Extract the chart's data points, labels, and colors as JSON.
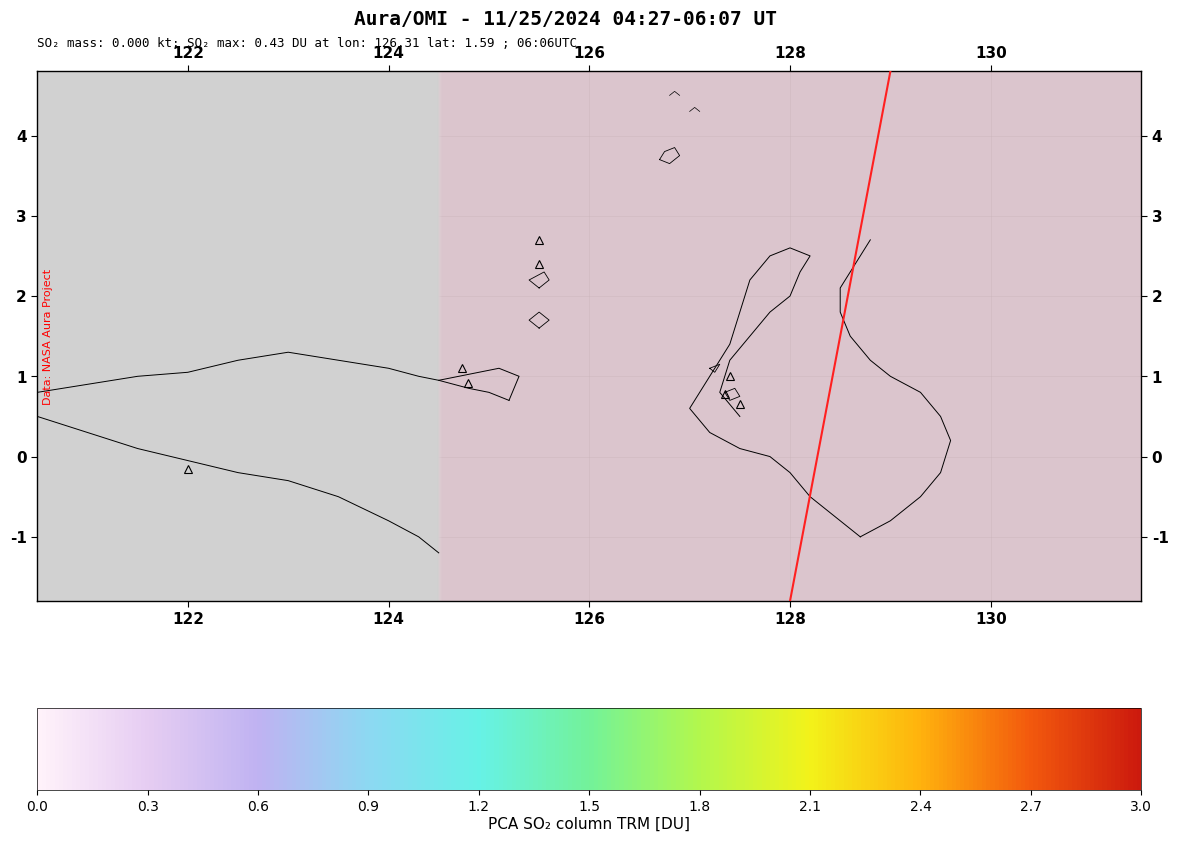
{
  "title": "Aura/OMI - 11/25/2024 04:27-06:07 UT",
  "subtitle": "SO₂ mass: 0.000 kt; SO₂ max: 0.43 DU at lon: 126.31 lat: 1.59 ; 06:06UTC",
  "lon_min": 120.5,
  "lon_max": 131.5,
  "lat_min": -1.8,
  "lat_max": 4.8,
  "lon_ticks": [
    122,
    124,
    126,
    128,
    130
  ],
  "lat_ticks": [
    -1,
    0,
    1,
    2,
    3,
    4
  ],
  "colorbar_label": "PCA SO₂ column TRM [DU]",
  "colorbar_ticks": [
    0.0,
    0.3,
    0.6,
    0.9,
    1.2,
    1.5,
    1.8,
    2.1,
    2.4,
    2.7,
    3.0
  ],
  "vmin": 0.0,
  "vmax": 3.0,
  "background_color": "#c8c8c8",
  "map_bg_color": "#b0b0b0",
  "so2_stripe_color_low": "#ffb0c8",
  "so2_stripe_color_mid": "#ff8080",
  "data_label": "Data: NASA Aura Project",
  "orbit_line_color": "#ff2020",
  "title_color": "#000000",
  "subtitle_color": "#000000",
  "fig_width": 12.0,
  "fig_height": 8.55,
  "dpi": 100
}
